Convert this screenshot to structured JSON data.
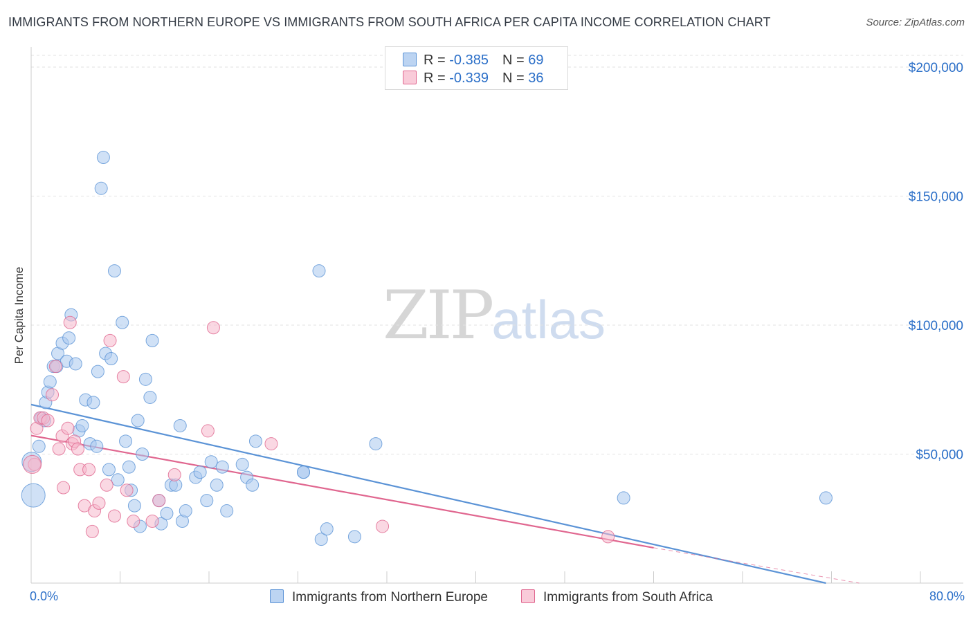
{
  "title": "IMMIGRANTS FROM NORTHERN EUROPE VS IMMIGRANTS FROM SOUTH AFRICA PER CAPITA INCOME CORRELATION CHART",
  "source": "Source: ZipAtlas.com",
  "watermark": {
    "zip": "ZIP",
    "atlas": "atlas"
  },
  "legend_top": {
    "rows": [
      {
        "r_label": "R = ",
        "r_value": "-0.385",
        "n_label": "N = ",
        "n_value": "69"
      },
      {
        "r_label": "R = ",
        "r_value": "-0.339",
        "n_label": "N = ",
        "n_value": "36"
      }
    ]
  },
  "x_axis": {
    "min_label": "0.0%",
    "max_label": "80.0%"
  },
  "chart_data": {
    "type": "scatter",
    "title": "IMMIGRANTS FROM NORTHERN EUROPE VS IMMIGRANTS FROM SOUTH AFRICA PER CAPITA INCOME CORRELATION CHART",
    "xlabel": "",
    "ylabel": "Per Capita Income",
    "xlim": [
      0,
      80
    ],
    "ylim": [
      0,
      200000
    ],
    "y_ticks": [
      50000,
      100000,
      150000,
      200000
    ],
    "y_tick_labels": [
      "$50,000",
      "$100,000",
      "$150,000",
      "$200,000"
    ],
    "legend_position": "bottom",
    "series": [
      {
        "name": "Immigrants from Northern Europe",
        "color": "#5b93d6",
        "fill": "#a9c8ee",
        "trend": {
          "x": [
            0,
            71.5
          ],
          "y": [
            69200,
            0
          ]
        },
        "points": [
          [
            0.2,
            34000
          ],
          [
            0.7,
            53000
          ],
          [
            0.9,
            64000
          ],
          [
            1.2,
            63000
          ],
          [
            1.3,
            70000
          ],
          [
            1.5,
            74000
          ],
          [
            1.7,
            78000
          ],
          [
            2.0,
            84000
          ],
          [
            2.3,
            84000
          ],
          [
            2.4,
            89000
          ],
          [
            2.8,
            93000
          ],
          [
            3.2,
            86000
          ],
          [
            3.4,
            95000
          ],
          [
            3.6,
            104000
          ],
          [
            4.0,
            85000
          ],
          [
            4.3,
            59000
          ],
          [
            4.6,
            61000
          ],
          [
            4.9,
            71000
          ],
          [
            5.3,
            54000
          ],
          [
            5.6,
            70000
          ],
          [
            5.9,
            53000
          ],
          [
            6.0,
            82000
          ],
          [
            6.3,
            153000
          ],
          [
            6.5,
            165000
          ],
          [
            6.7,
            89000
          ],
          [
            7.0,
            44000
          ],
          [
            7.2,
            87000
          ],
          [
            7.5,
            121000
          ],
          [
            7.8,
            40000
          ],
          [
            8.2,
            101000
          ],
          [
            8.5,
            55000
          ],
          [
            8.8,
            45000
          ],
          [
            9.0,
            36000
          ],
          [
            9.3,
            30000
          ],
          [
            9.6,
            63000
          ],
          [
            9.8,
            22000
          ],
          [
            10.0,
            50000
          ],
          [
            10.3,
            79000
          ],
          [
            10.7,
            72000
          ],
          [
            10.9,
            94000
          ],
          [
            11.5,
            32000
          ],
          [
            11.7,
            23000
          ],
          [
            12.2,
            27000
          ],
          [
            12.6,
            38000
          ],
          [
            13.0,
            38000
          ],
          [
            13.4,
            61000
          ],
          [
            13.6,
            24000
          ],
          [
            13.9,
            28000
          ],
          [
            14.8,
            41000
          ],
          [
            15.2,
            43000
          ],
          [
            15.8,
            32000
          ],
          [
            16.2,
            47000
          ],
          [
            16.7,
            38000
          ],
          [
            17.2,
            45000
          ],
          [
            17.6,
            28000
          ],
          [
            19.0,
            46000
          ],
          [
            19.4,
            41000
          ],
          [
            19.9,
            38000
          ],
          [
            20.2,
            55000
          ],
          [
            24.5,
            43000
          ],
          [
            24.5,
            43000
          ],
          [
            25.9,
            121000
          ],
          [
            26.1,
            17000
          ],
          [
            26.6,
            21000
          ],
          [
            29.1,
            18000
          ],
          [
            31.0,
            54000
          ],
          [
            53.3,
            33000
          ],
          [
            71.5,
            33000
          ],
          [
            0.05,
            47000
          ]
        ]
      },
      {
        "name": "Immigrants from South Africa",
        "color": "#e0668f",
        "fill": "#f5b8cc",
        "trend": {
          "x": [
            0,
            56
          ],
          "y": [
            57200,
            13700
          ]
        },
        "trend_dashed": {
          "x": [
            56,
            74.5
          ],
          "y": [
            13700,
            0
          ]
        },
        "points": [
          [
            0.3,
            46000
          ],
          [
            0.5,
            60000
          ],
          [
            0.8,
            64000
          ],
          [
            1.1,
            64000
          ],
          [
            1.5,
            63000
          ],
          [
            1.9,
            73000
          ],
          [
            2.2,
            84000
          ],
          [
            2.5,
            52000
          ],
          [
            2.8,
            57000
          ],
          [
            2.9,
            37000
          ],
          [
            3.3,
            60000
          ],
          [
            3.5,
            101000
          ],
          [
            3.7,
            54000
          ],
          [
            3.9,
            55000
          ],
          [
            4.2,
            52000
          ],
          [
            4.4,
            44000
          ],
          [
            4.8,
            30000
          ],
          [
            5.2,
            44000
          ],
          [
            5.5,
            20000
          ],
          [
            5.7,
            28000
          ],
          [
            6.1,
            31000
          ],
          [
            6.8,
            38000
          ],
          [
            7.1,
            94000
          ],
          [
            7.5,
            26000
          ],
          [
            8.3,
            80000
          ],
          [
            8.6,
            36000
          ],
          [
            9.2,
            24000
          ],
          [
            10.9,
            24000
          ],
          [
            11.5,
            32000
          ],
          [
            12.9,
            42000
          ],
          [
            15.9,
            59000
          ],
          [
            16.4,
            99000
          ],
          [
            21.6,
            54000
          ],
          [
            31.6,
            22000
          ],
          [
            51.9,
            18000
          ],
          [
            0.1,
            46000
          ]
        ]
      }
    ]
  }
}
